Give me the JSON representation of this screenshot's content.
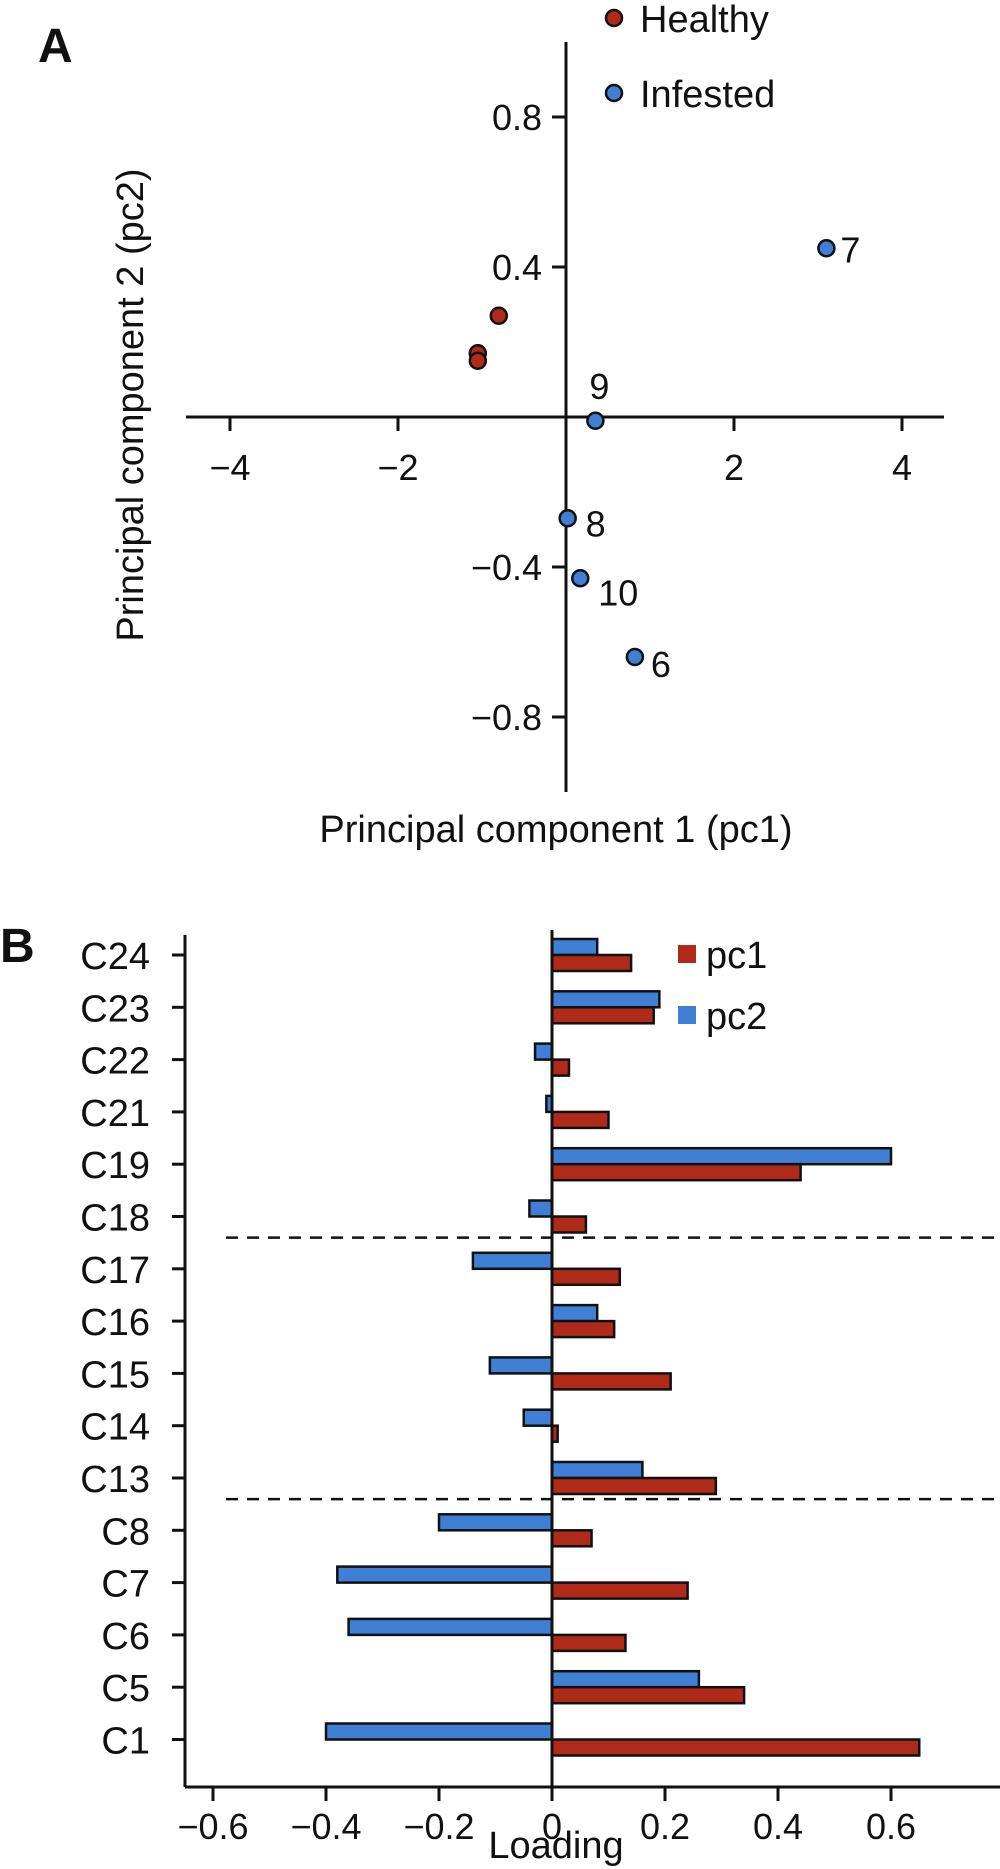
{
  "figure": {
    "panel_a_label": "A",
    "panel_b_label": "B"
  },
  "colors": {
    "healthy": "#b02a1a",
    "infested": "#3f7fd4",
    "pc1": "#b02a1a",
    "pc2": "#3f7fd4",
    "axis": "#111111"
  },
  "chart_data": [
    {
      "type": "scatter",
      "xlabel": "Principal component 1 (pc1)",
      "ylabel": "Principal component 2 (pc2)",
      "xlim": [
        -4.4,
        4.6
      ],
      "ylim": [
        -1.0,
        1.0
      ],
      "xticks": [
        -4,
        -2,
        0,
        2,
        4
      ],
      "xtick_labels": [
        "−4",
        "−2",
        "",
        "2",
        "4"
      ],
      "yticks": [
        -0.8,
        -0.4,
        0.4,
        0.8
      ],
      "ytick_labels": [
        "−0.8",
        "−0.4",
        "0.4",
        "0.8"
      ],
      "legend": [
        {
          "name": "Healthy",
          "color": "#b02a1a"
        },
        {
          "name": "Infested",
          "color": "#3f7fd4"
        }
      ],
      "legend_position": "top-right",
      "series": [
        {
          "name": "Healthy",
          "points": [
            {
              "x": -0.8,
              "y": 0.27,
              "label": ""
            },
            {
              "x": -1.05,
              "y": 0.17,
              "label": ""
            },
            {
              "x": -1.05,
              "y": 0.15,
              "label": ""
            }
          ]
        },
        {
          "name": "Infested",
          "points": [
            {
              "x": 3.1,
              "y": 0.45,
              "label": "7"
            },
            {
              "x": 0.35,
              "y": -0.01,
              "label": "9"
            },
            {
              "x": 0.02,
              "y": -0.27,
              "label": "8"
            },
            {
              "x": 0.17,
              "y": -0.43,
              "label": "10"
            },
            {
              "x": 0.82,
              "y": -0.64,
              "label": "6"
            }
          ]
        }
      ]
    },
    {
      "type": "bar",
      "orientation": "horizontal",
      "xlabel": "Loading",
      "xlim": [
        -0.7,
        0.8
      ],
      "xticks": [
        -0.6,
        -0.4,
        -0.2,
        0,
        0.2,
        0.4,
        0.6
      ],
      "xtick_labels": [
        "−0.6",
        "−0.4",
        "−0.2",
        "0",
        "0.2",
        "0.4",
        "0.6"
      ],
      "categories": [
        "C24",
        "C23",
        "C22",
        "C21",
        "C19",
        "C18",
        "C17",
        "C16",
        "C15",
        "C14",
        "C13",
        "C8",
        "C7",
        "C6",
        "C5",
        "C1"
      ],
      "series": [
        {
          "name": "pc1",
          "color": "#b02a1a",
          "values": [
            0.14,
            0.18,
            0.03,
            0.1,
            0.44,
            0.06,
            0.12,
            0.11,
            0.21,
            0.01,
            0.29,
            0.07,
            0.24,
            0.13,
            0.34,
            0.65
          ]
        },
        {
          "name": "pc2",
          "color": "#3f7fd4",
          "values": [
            0.08,
            0.19,
            -0.03,
            -0.01,
            0.6,
            -0.04,
            -0.14,
            0.08,
            -0.11,
            -0.05,
            0.16,
            -0.2,
            -0.38,
            -0.36,
            0.26,
            -0.4
          ]
        }
      ],
      "legend_position": "top-right",
      "dividers_after": [
        "C18",
        "C13"
      ],
      "divider_style": "dashed"
    }
  ]
}
